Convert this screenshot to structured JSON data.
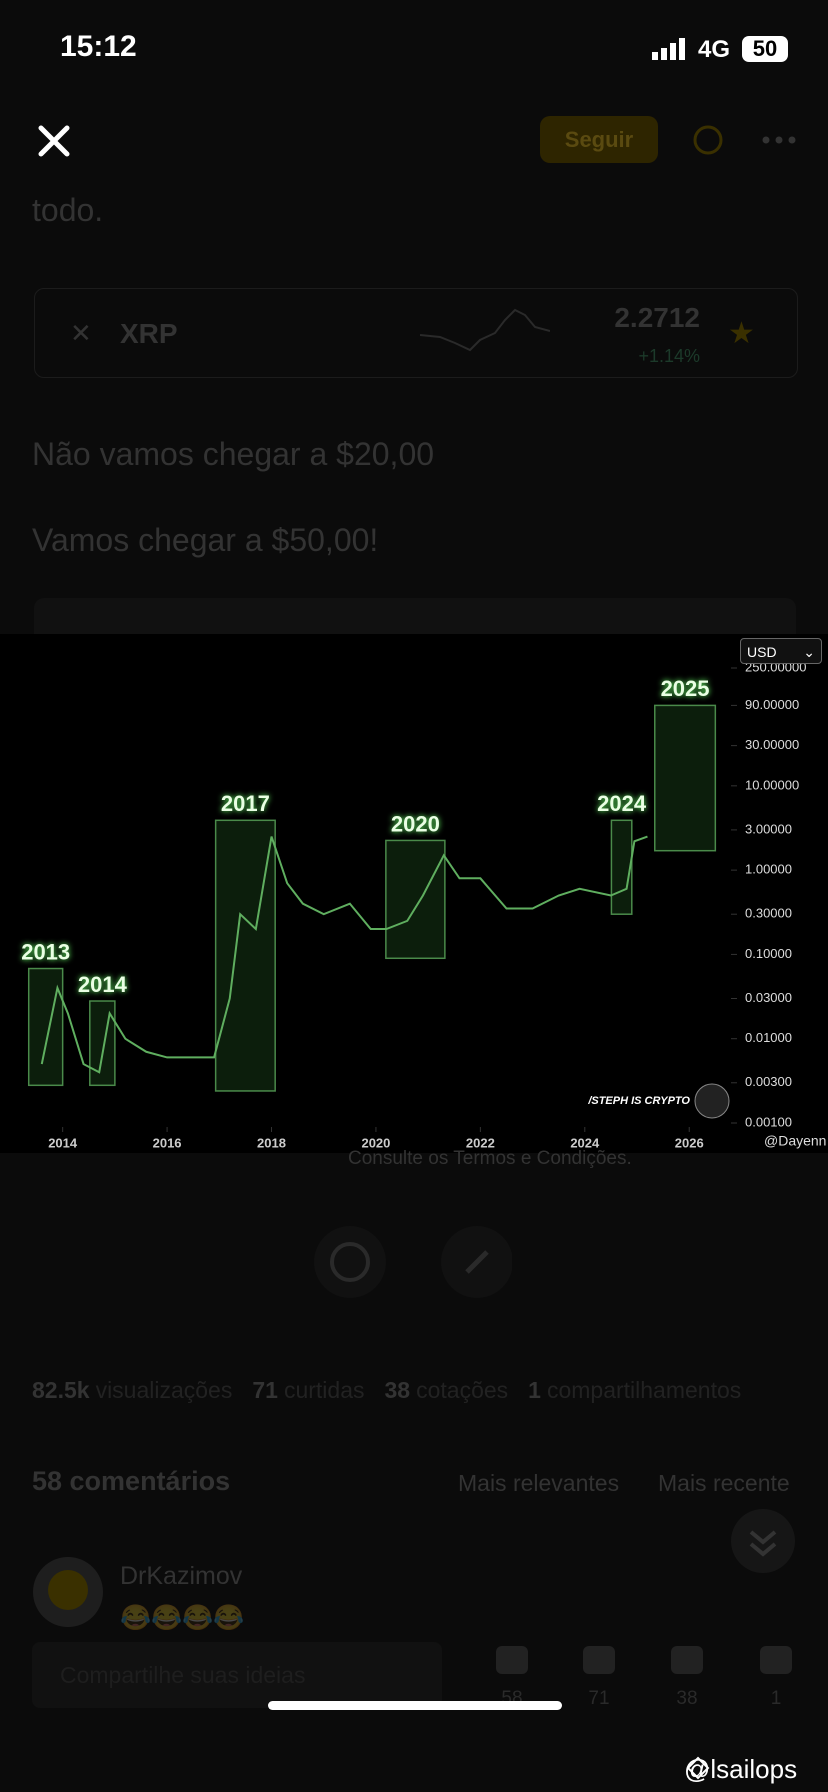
{
  "status_bar": {
    "time": "15:12",
    "network": "4G",
    "battery": "50"
  },
  "header": {
    "follow_button": "Seguir"
  },
  "post": {
    "text_fragment": "todo.",
    "coin": {
      "symbol": "XRP",
      "price": "2.2712",
      "change": "+1.14%"
    },
    "lines": [
      "Não vamos chegar a $20,00",
      "Vamos chegar a $50,00!"
    ],
    "disclaimer": "Consulte os Termos e Condições."
  },
  "chart_data": {
    "type": "line",
    "log_scale": true,
    "grid": false,
    "currency": "USD",
    "watermark": "/STEPH IS CRYPTO",
    "credit": "@Dayenn",
    "xlim": [
      2012.8,
      2026.8
    ],
    "xticks": [
      2014,
      2016,
      2018,
      2020,
      2022,
      2024,
      2026
    ],
    "ylim": [
      0.001,
      250
    ],
    "yticks": [
      {
        "value": 0.001,
        "label": "0.00100"
      },
      {
        "value": 0.003,
        "label": "0.00300"
      },
      {
        "value": 0.01,
        "label": "0.01000"
      },
      {
        "value": 0.03,
        "label": "0.03000"
      },
      {
        "value": 0.1,
        "label": "0.10000"
      },
      {
        "value": 0.3,
        "label": "0.30000"
      },
      {
        "value": 1,
        "label": "1.00000"
      },
      {
        "value": 3,
        "label": "3.00000"
      },
      {
        "value": 10,
        "label": "10.00000"
      },
      {
        "value": 30,
        "label": "30.00000"
      },
      {
        "value": 90,
        "label": "90.00000"
      },
      {
        "value": 250,
        "label": "250.00000"
      }
    ],
    "series": [
      {
        "color": "#5fae5f",
        "x": [
          2013.6,
          2013.9,
          2014.1,
          2014.4,
          2014.7,
          2014.9,
          2015.2,
          2015.6,
          2016.0,
          2016.5,
          2016.9,
          2017.2,
          2017.4,
          2017.7,
          2018.0,
          2018.3,
          2018.6,
          2019.0,
          2019.5,
          2019.9,
          2020.2,
          2020.6,
          2020.9,
          2021.3,
          2021.6,
          2022.0,
          2022.5,
          2023.0,
          2023.5,
          2023.9,
          2024.5,
          2024.8,
          2024.95,
          2025.2
        ],
        "values": [
          0.005,
          0.04,
          0.02,
          0.005,
          0.004,
          0.02,
          0.01,
          0.007,
          0.006,
          0.006,
          0.006,
          0.03,
          0.3,
          0.2,
          2.5,
          0.7,
          0.4,
          0.3,
          0.4,
          0.2,
          0.2,
          0.25,
          0.5,
          1.5,
          0.8,
          0.8,
          0.35,
          0.35,
          0.5,
          0.6,
          0.5,
          0.6,
          2.2,
          2.5
        ]
      }
    ],
    "highlights": [
      {
        "label": "2013",
        "x": [
          2013.35,
          2014.0
        ],
        "y": [
          0.0028,
          0.068
        ]
      },
      {
        "label": "2014",
        "x": [
          2014.52,
          2015.0
        ],
        "y": [
          0.0028,
          0.028
        ]
      },
      {
        "label": "2017",
        "x": [
          2016.93,
          2018.07
        ],
        "y": [
          0.0024,
          3.9
        ]
      },
      {
        "label": "2020",
        "x": [
          2020.19,
          2021.32
        ],
        "y": [
          0.09,
          2.25
        ]
      },
      {
        "label": "2024",
        "x": [
          2024.51,
          2024.9
        ],
        "y": [
          0.3,
          3.9
        ]
      },
      {
        "label": "2025",
        "x": [
          2025.34,
          2026.5
        ],
        "y": [
          1.7,
          90
        ]
      }
    ]
  },
  "stats": [
    {
      "count": "82.5k",
      "label": "visualizações"
    },
    {
      "count": "71",
      "label": "curtidas"
    },
    {
      "count": "38",
      "label": "cotações"
    },
    {
      "count": "1",
      "label": "compartilhamentos"
    }
  ],
  "comments": {
    "title": "58 comentários",
    "sort_relevant": "Mais relevantes",
    "sort_recent": "Mais recente",
    "first": {
      "author": "DrKazimov",
      "text": "😂😂😂😂"
    }
  },
  "bottom_bar": {
    "placeholder": "Compartilhe suas ideias",
    "counts": [
      58,
      71,
      38,
      1
    ]
  },
  "watermark": "@lsailops"
}
